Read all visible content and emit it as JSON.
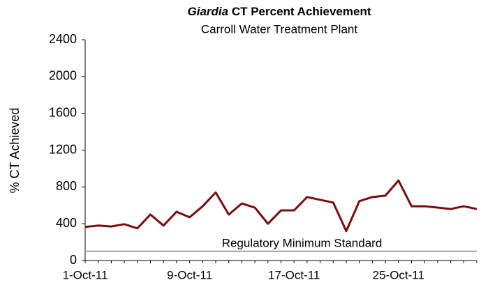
{
  "chart_data": {
    "type": "line",
    "title_emphasis": "Giardia",
    "title": "CT Percent Achievement",
    "subtitle": "Carroll Water Treatment Plant",
    "y_label": "% CT Achieved",
    "categories": [
      "1-Oct-11",
      null,
      null,
      null,
      null,
      null,
      null,
      null,
      "9-Oct-11",
      null,
      null,
      null,
      null,
      null,
      null,
      null,
      "17-Oct-11",
      null,
      null,
      null,
      null,
      null,
      null,
      null,
      "25-Oct-11",
      null,
      null,
      null,
      null,
      null,
      null
    ],
    "series": [
      {
        "name": "% CT Achieved",
        "color": "#7b0c0c",
        "values": [
          365,
          380,
          370,
          395,
          350,
          500,
          380,
          530,
          470,
          590,
          740,
          500,
          620,
          575,
          400,
          545,
          545,
          690,
          660,
          630,
          320,
          645,
          690,
          705,
          870,
          590,
          590,
          575,
          560,
          590,
          560
        ]
      }
    ],
    "reference_line": {
      "value": 100,
      "label": "Regulatory Minimum Standard",
      "color": "#a0a0a0"
    },
    "ylim": [
      0,
      2400
    ],
    "yticks": [
      0,
      400,
      800,
      1200,
      1600,
      2000,
      2400
    ],
    "grid": false
  }
}
